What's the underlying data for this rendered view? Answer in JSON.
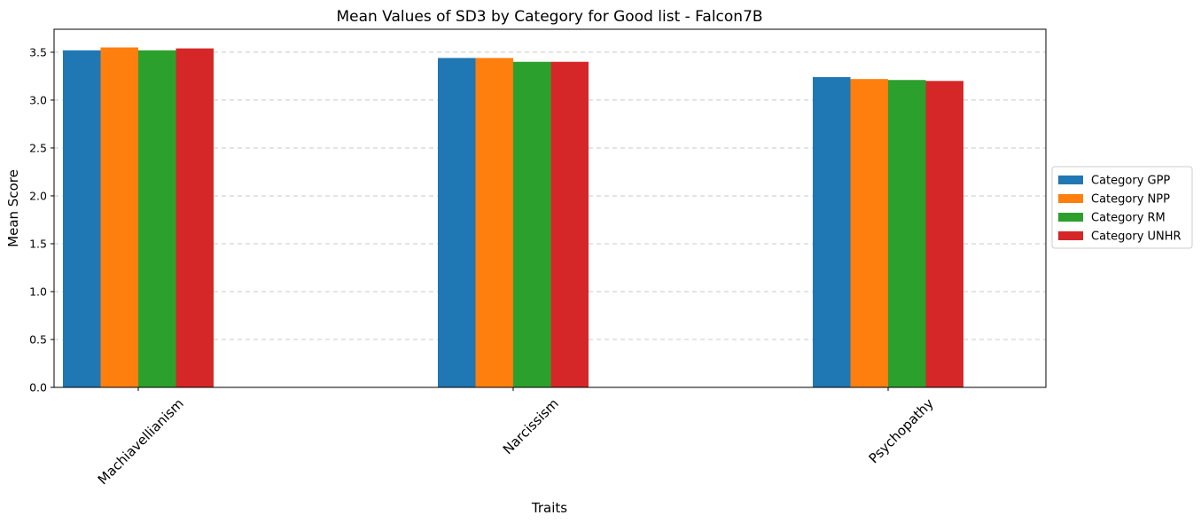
{
  "chart_data": {
    "type": "bar",
    "title": "Mean Values of SD3 by Category for Good list - Falcon7B",
    "xlabel": "Traits",
    "ylabel": "Mean Score",
    "categories": [
      "Machiavellianism",
      "Narcissism",
      "Psychopathy"
    ],
    "series": [
      {
        "name": "Category GPP",
        "color": "#1f77b4",
        "values": [
          3.52,
          3.44,
          3.24
        ]
      },
      {
        "name": "Category NPP",
        "color": "#ff7f0e",
        "values": [
          3.55,
          3.44,
          3.22
        ]
      },
      {
        "name": "Category RM",
        "color": "#2ca02c",
        "values": [
          3.52,
          3.4,
          3.21
        ]
      },
      {
        "name": "Category UNHR",
        "color": "#d62728",
        "values": [
          3.54,
          3.4,
          3.2
        ]
      }
    ],
    "ylim": [
      0,
      3.74
    ],
    "yticks": [
      "0.0",
      "0.5",
      "1.0",
      "1.5",
      "2.0",
      "2.5",
      "3.0",
      "3.5"
    ],
    "grid": "y-dashed",
    "legend_position": "right-outside"
  }
}
